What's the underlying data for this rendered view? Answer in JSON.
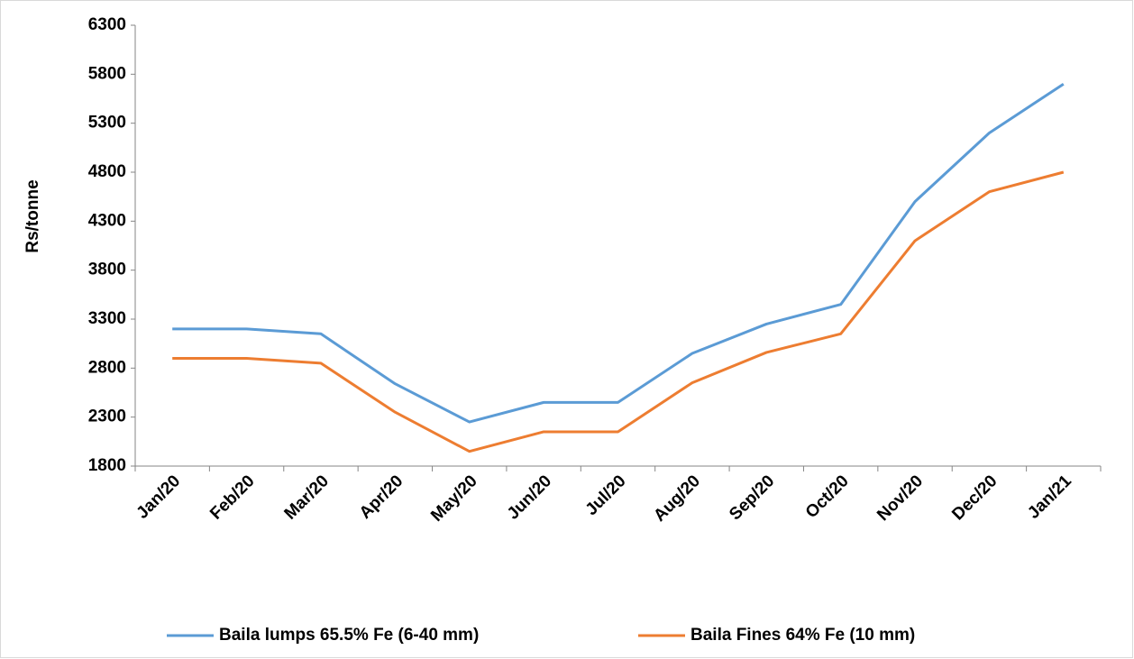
{
  "chart_data": {
    "type": "line",
    "y_label": "Rs/tonne",
    "categories": [
      "Jan/20",
      "Feb/20",
      "Mar/20",
      "Apr/20",
      "May/20",
      "Jun/20",
      "Jul/20",
      "Aug/20",
      "Sep/20",
      "Oct/20",
      "Nov/20",
      "Dec/20",
      "Jan/21"
    ],
    "series": [
      {
        "name": "Baila lumps 65.5% Fe (6-40 mm)",
        "color": "#5b9bd5",
        "values": [
          3200,
          3200,
          3150,
          2640,
          2250,
          2450,
          2450,
          2950,
          3250,
          3450,
          4500,
          5200,
          5700
        ]
      },
      {
        "name": "Baila Fines 64% Fe (10 mm)",
        "color": "#ed7d31",
        "values": [
          2900,
          2900,
          2850,
          2350,
          1950,
          2150,
          2150,
          2650,
          2960,
          3150,
          4100,
          4600,
          4800
        ]
      }
    ],
    "ylim": [
      1800,
      6300
    ],
    "yticks": [
      1800,
      2300,
      2800,
      3300,
      3800,
      4300,
      4800,
      5300,
      5800,
      6300
    ],
    "grid": false,
    "legend": "bottom"
  }
}
